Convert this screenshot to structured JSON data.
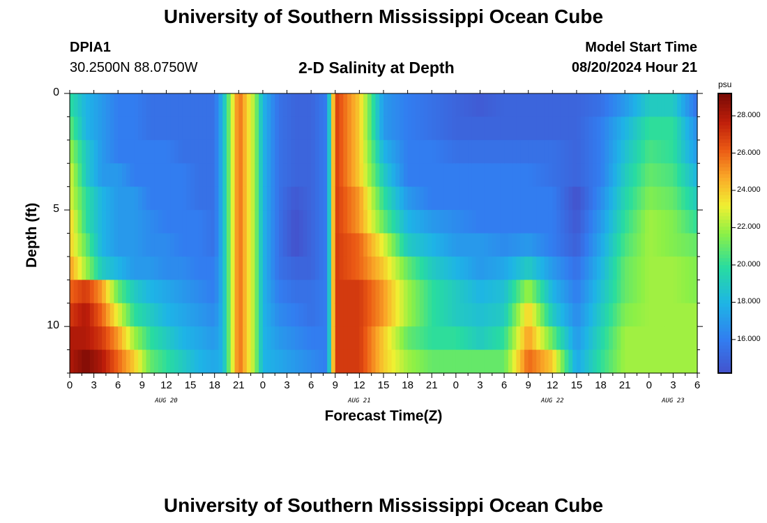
{
  "header": {
    "title": "University of Southern Mississippi Ocean Cube",
    "station": "DPIA1",
    "coords": "30.2500N  88.0750W",
    "subtitle": "2-D Salinity at Depth",
    "model_start_label": "Model Start Time",
    "model_start_value": "08/20/2024 Hour 21"
  },
  "footer": {
    "title": "University of Southern Mississippi Ocean Cube"
  },
  "colorbar": {
    "unit": "psu",
    "ticks": [
      "16.000",
      "18.000",
      "20.000",
      "22.000",
      "24.000",
      "26.000",
      "28.000"
    ],
    "tick_values": [
      16,
      18,
      20,
      22,
      24,
      26,
      28
    ],
    "range": [
      14.2,
      29.2
    ]
  },
  "chart_data": {
    "type": "heatmap",
    "title": "2-D Salinity at Depth",
    "xlabel": "Forecast Time(Z)",
    "ylabel": "Depth (ft)",
    "ylim": [
      0,
      12
    ],
    "y_ticks": [
      "0",
      "5",
      "10"
    ],
    "y_tick_values": [
      0,
      5,
      10
    ],
    "x_ticks": [
      "0",
      "3",
      "6",
      "9",
      "12",
      "15",
      "18",
      "21",
      "0",
      "3",
      "6",
      "9",
      "12",
      "15",
      "18",
      "21",
      "0",
      "3",
      "6",
      "9",
      "12",
      "15",
      "18",
      "21",
      "0",
      "3",
      "6"
    ],
    "x_tick_hours": [
      0,
      3,
      6,
      9,
      12,
      15,
      18,
      21,
      24,
      27,
      30,
      33,
      36,
      39,
      42,
      45,
      48,
      51,
      54,
      57,
      60,
      63,
      66,
      69,
      72,
      75,
      78
    ],
    "date_labels": [
      {
        "label": "AUG 20",
        "hour": 12
      },
      {
        "label": "AUG 21",
        "hour": 36
      },
      {
        "label": "AUG 22",
        "hour": 60
      },
      {
        "label": "AUG 23",
        "hour": 75
      }
    ],
    "xlim_hours": [
      0,
      78
    ],
    "grid": false,
    "units": "psu",
    "value_range": [
      14.2,
      29.2
    ],
    "columns": [
      {
        "hour": 0,
        "salinity_top_to_bottom": [
          20,
          21,
          22,
          23,
          23,
          24,
          24,
          25,
          26,
          27,
          28,
          28
        ]
      },
      {
        "hour": 2,
        "salinity_top_to_bottom": [
          18,
          18,
          19,
          19,
          20,
          20,
          21,
          22,
          27,
          28,
          28,
          29
        ]
      },
      {
        "hour": 4,
        "salinity_top_to_bottom": [
          17,
          17,
          17,
          17,
          18,
          18,
          18,
          19,
          25,
          26,
          27,
          28
        ]
      },
      {
        "hour": 6,
        "salinity_top_to_bottom": [
          16,
          16,
          16,
          17,
          17,
          17,
          17,
          18,
          21,
          23,
          25,
          26
        ]
      },
      {
        "hour": 8,
        "salinity_top_to_bottom": [
          16,
          16,
          16,
          16,
          17,
          17,
          17,
          17,
          19,
          20,
          22,
          24
        ]
      },
      {
        "hour": 10,
        "salinity_top_to_bottom": [
          15.5,
          15.5,
          16,
          16,
          16,
          16.5,
          16.5,
          17,
          18,
          19,
          20,
          21
        ]
      },
      {
        "hour": 12,
        "salinity_top_to_bottom": [
          15.5,
          15.5,
          16,
          16,
          16,
          16,
          16.5,
          16.5,
          17.5,
          18,
          19,
          20
        ]
      },
      {
        "hour": 14,
        "salinity_top_to_bottom": [
          15.5,
          15.5,
          15.5,
          16,
          16,
          16,
          16,
          16.5,
          17,
          17.5,
          18,
          19
        ]
      },
      {
        "hour": 16,
        "salinity_top_to_bottom": [
          15.5,
          15.5,
          15.5,
          15.5,
          15.5,
          16,
          16,
          16,
          16.5,
          17,
          17.5,
          18
        ]
      },
      {
        "hour": 18,
        "salinity_top_to_bottom": [
          15.5,
          15.5,
          15.5,
          15.5,
          15.5,
          15.5,
          15.5,
          16,
          16,
          16.5,
          17,
          17.5
        ]
      },
      {
        "hour": 19,
        "salinity_top_to_bottom": [
          18,
          18,
          18,
          18,
          18,
          18,
          18,
          18,
          18,
          18,
          18,
          18
        ]
      },
      {
        "hour": 20,
        "salinity_top_to_bottom": [
          22,
          22,
          22,
          22,
          22,
          22,
          22,
          22,
          22,
          22,
          22,
          22
        ]
      },
      {
        "hour": 21,
        "salinity_top_to_bottom": [
          26,
          26,
          26,
          26,
          26,
          26,
          26,
          26,
          26,
          26,
          26,
          26
        ]
      },
      {
        "hour": 23,
        "salinity_top_to_bottom": [
          22,
          22,
          22,
          22,
          22,
          22,
          22,
          22,
          22,
          22,
          22,
          22
        ]
      },
      {
        "hour": 24,
        "salinity_top_to_bottom": [
          18,
          18,
          18,
          18,
          18,
          18,
          18,
          18,
          18,
          18,
          18,
          18
        ]
      },
      {
        "hour": 26,
        "salinity_top_to_bottom": [
          15.5,
          15.5,
          15.5,
          15.5,
          15.5,
          15.5,
          15.5,
          15.5,
          16,
          16.5,
          17,
          17.5
        ]
      },
      {
        "hour": 28,
        "salinity_top_to_bottom": [
          15,
          15,
          15,
          15,
          14.5,
          14.2,
          14.2,
          15,
          15.5,
          16,
          16.5,
          17
        ]
      },
      {
        "hour": 30,
        "salinity_top_to_bottom": [
          15,
          15,
          15,
          15,
          15,
          15,
          15,
          15,
          15.5,
          15.5,
          16,
          16.5
        ]
      },
      {
        "hour": 32,
        "salinity_top_to_bottom": [
          16,
          16,
          16,
          16,
          16,
          16,
          16,
          16,
          16,
          16,
          16,
          16
        ]
      },
      {
        "hour": 33,
        "salinity_top_to_bottom": [
          27,
          27,
          27,
          27,
          27,
          27,
          27,
          27,
          27,
          27,
          27,
          27
        ]
      },
      {
        "hour": 36,
        "salinity_top_to_bottom": [
          24,
          24,
          24,
          24,
          25,
          25,
          26,
          26,
          27,
          27,
          27,
          27
        ]
      },
      {
        "hour": 39,
        "salinity_top_to_bottom": [
          17,
          17,
          18,
          19,
          20,
          21,
          23,
          24,
          25,
          25,
          24,
          24
        ]
      },
      {
        "hour": 42,
        "salinity_top_to_bottom": [
          16,
          16,
          16,
          16,
          17,
          18,
          19,
          21,
          22,
          22,
          21,
          22
        ]
      },
      {
        "hour": 45,
        "salinity_top_to_bottom": [
          15.5,
          15.5,
          16,
          16,
          16,
          17,
          18,
          19,
          20,
          20,
          20,
          21
        ]
      },
      {
        "hour": 48,
        "salinity_top_to_bottom": [
          15,
          15,
          15.5,
          16,
          16,
          16.5,
          17,
          18,
          19,
          19,
          20,
          21
        ]
      },
      {
        "hour": 51,
        "salinity_top_to_bottom": [
          14.6,
          15,
          15.5,
          16,
          16,
          16,
          17,
          17,
          18,
          18.5,
          19,
          21
        ]
      },
      {
        "hour": 54,
        "salinity_top_to_bottom": [
          15,
          15,
          15.5,
          16,
          16,
          16,
          16.5,
          17.5,
          18.5,
          19,
          20,
          21
        ]
      },
      {
        "hour": 57,
        "salinity_top_to_bottom": [
          15,
          15,
          15.5,
          16,
          16,
          16,
          17,
          19,
          22,
          24,
          25,
          26
        ]
      },
      {
        "hour": 60,
        "salinity_top_to_bottom": [
          15,
          15,
          15.5,
          15.5,
          16,
          16,
          16,
          17,
          18,
          19,
          21,
          24
        ]
      },
      {
        "hour": 63,
        "salinity_top_to_bottom": [
          15,
          15,
          15,
          15,
          14.2,
          14.5,
          14.8,
          15.5,
          16,
          16.5,
          17,
          17.5
        ]
      },
      {
        "hour": 66,
        "salinity_top_to_bottom": [
          15.5,
          16,
          16,
          16,
          16.5,
          17,
          17.5,
          18,
          18.5,
          19,
          19.5,
          20
        ]
      },
      {
        "hour": 69,
        "salinity_top_to_bottom": [
          17,
          18,
          18.5,
          19,
          19.5,
          20,
          20.5,
          21,
          21,
          21.5,
          22,
          22
        ]
      },
      {
        "hour": 72,
        "salinity_top_to_bottom": [
          19,
          20,
          20.5,
          21,
          21.5,
          22,
          22,
          22,
          22,
          22,
          22,
          22
        ]
      },
      {
        "hour": 75,
        "salinity_top_to_bottom": [
          19,
          20,
          20,
          20.5,
          21,
          21.5,
          21.5,
          22,
          22,
          22,
          22,
          22
        ]
      },
      {
        "hour": 78,
        "salinity_top_to_bottom": [
          15.5,
          16.5,
          17,
          18,
          19,
          20,
          21,
          21.5,
          21.5,
          22,
          22,
          22
        ]
      }
    ]
  }
}
